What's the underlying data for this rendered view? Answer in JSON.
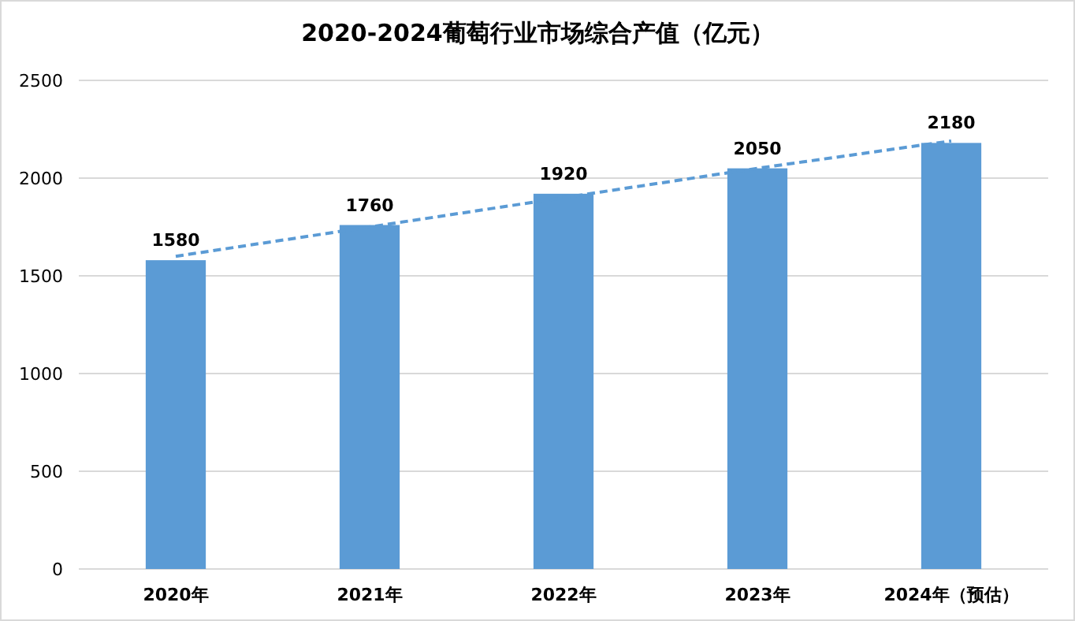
{
  "chart_data": {
    "type": "bar",
    "title": "2020-2024葡萄行业市场综合产值（亿元）",
    "categories": [
      "2020年",
      "2021年",
      "2022年",
      "2023年",
      "2024年（预估）"
    ],
    "series": [
      {
        "color": "#5b9bd5",
        "values": [
          1580,
          1760,
          1920,
          2050,
          2180
        ],
        "value_labels": [
          "1580",
          "1760",
          "1920",
          "2050",
          "2180"
        ]
      },
      {
        "type": "line",
        "color": "#5b9bd5",
        "line_style": "dashed",
        "values": [
          1600,
          1750,
          1900,
          2050,
          2190
        ]
      }
    ],
    "ylim": [
      0,
      2500
    ],
    "yticks": [
      0,
      500,
      1000,
      1500,
      2000,
      2500
    ],
    "grid": "y"
  }
}
